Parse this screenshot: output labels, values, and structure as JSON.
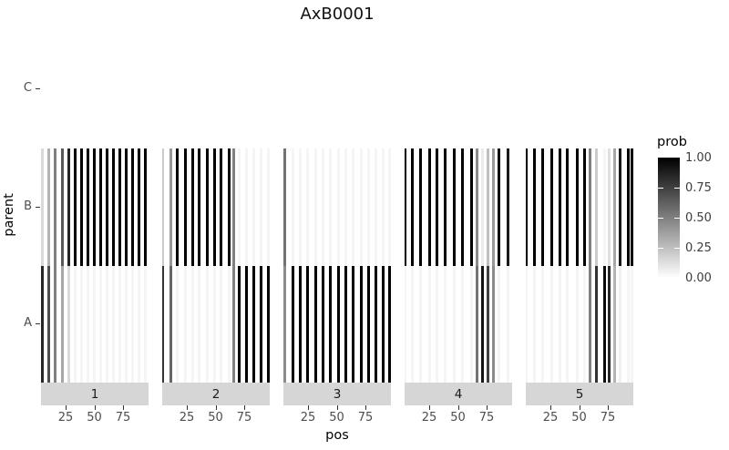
{
  "chart_data": {
    "type": "heatmap",
    "title": "AxB0001",
    "xlabel": "pos",
    "ylabel": "parent",
    "y_categories_top_to_bottom": [
      "C",
      "B",
      "A"
    ],
    "x_ticks": [
      25,
      50,
      75
    ],
    "x_range": [
      0,
      100
    ],
    "grid": false,
    "legend_position": "right",
    "fill_scale": {
      "title": "prob",
      "low_color": "#FFFFFF",
      "high_color": "#000000",
      "tick_labels": [
        "1.00",
        "0.75",
        "0.50",
        "0.25",
        "0.00"
      ],
      "tick_values": [
        1.0,
        0.75,
        0.5,
        0.25,
        0.0
      ]
    },
    "prob_C": 0,
    "facets": [
      {
        "label": "1",
        "positions": [
          5,
          10.6,
          16.2,
          21.8,
          27.4,
          33,
          38.6,
          44.2,
          49.8,
          55.4,
          61,
          66.6,
          72.2,
          77.8,
          83.4,
          89,
          94.6
        ],
        "prob_B": [
          0.15,
          0.3,
          0.5,
          0.65,
          0.85,
          1,
          1,
          1,
          1,
          1,
          1,
          1,
          1,
          1,
          1,
          1,
          1
        ],
        "prob_A": [
          0.85,
          0.7,
          0.5,
          0.35,
          0.15,
          0.04,
          0.04,
          0.04,
          0.04,
          0.04,
          0.04,
          0.04,
          0.04,
          0.04,
          0.04,
          0.04,
          0.04
        ]
      },
      {
        "label": "2",
        "positions": [
          4,
          11,
          17,
          24,
          30,
          36,
          43,
          49,
          55,
          62,
          66,
          70.5,
          77,
          83,
          89.5,
          96
        ],
        "prob_B": [
          0.2,
          0.4,
          1,
          1,
          1,
          1,
          1,
          1,
          1,
          1,
          0.5,
          0.04,
          0.04,
          0.04,
          0.04,
          0.04
        ],
        "prob_A": [
          0.8,
          0.6,
          0.04,
          0.04,
          0.04,
          0.04,
          0.04,
          0.04,
          0.04,
          0.04,
          0.5,
          1,
          1,
          1,
          1,
          1
        ]
      },
      {
        "label": "3",
        "positions": [
          5,
          11.6,
          18.2,
          24.8,
          31.4,
          38,
          44.6,
          51.2,
          57.8,
          64.4,
          71,
          77.6,
          84.2,
          90.8,
          96
        ],
        "prob_B": [
          0.55,
          0.04,
          0.04,
          0.04,
          0.04,
          0.04,
          0.04,
          0.04,
          0.04,
          0.04,
          0.04,
          0.04,
          0.04,
          0.04,
          0.04
        ],
        "prob_A": [
          0.45,
          1,
          1,
          1,
          1,
          1,
          1,
          1,
          1,
          1,
          1,
          1,
          1,
          1,
          1
        ]
      },
      {
        "label": "4",
        "positions": [
          4,
          10,
          17.5,
          25,
          32,
          39,
          47,
          54,
          61.5,
          67,
          71.5,
          76,
          81,
          86,
          94
        ],
        "prob_B": [
          1,
          1,
          1,
          1,
          1,
          1,
          1,
          1,
          1,
          0.45,
          0.08,
          0.25,
          0.4,
          0.95,
          0.9
        ],
        "prob_A": [
          0.04,
          0.04,
          0.04,
          0.04,
          0.04,
          0.04,
          0.04,
          0.04,
          0.04,
          0.55,
          0.92,
          0.75,
          0.45,
          0.04,
          0.04
        ]
      },
      {
        "label": "5",
        "positions": [
          4,
          11,
          18,
          26,
          33,
          40,
          48,
          55,
          59.5,
          65,
          72,
          76.5,
          81,
          86,
          93,
          96
        ],
        "prob_B": [
          1,
          1,
          1,
          1,
          1,
          1,
          1,
          1,
          0.5,
          0.2,
          0.04,
          0.12,
          0.35,
          0.9,
          1,
          1
        ],
        "prob_A": [
          0.04,
          0.04,
          0.04,
          0.04,
          0.04,
          0.04,
          0.04,
          0.04,
          0.5,
          0.8,
          0.96,
          0.85,
          0.3,
          0.06,
          0.04,
          0.04
        ]
      }
    ]
  }
}
